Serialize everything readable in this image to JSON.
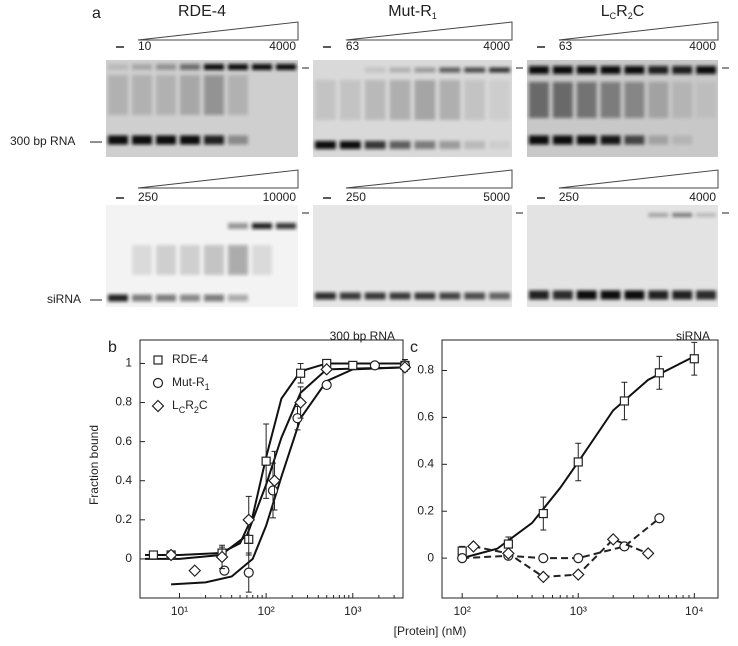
{
  "figure": {
    "panel_label": "a",
    "gels": [
      {
        "title": [
          {
            "text": "RDE-4"
          }
        ],
        "top": {
          "low": "10",
          "high": "4000"
        },
        "bottom": {
          "low": "250",
          "high": "10000"
        }
      },
      {
        "title": [
          {
            "text": "Mut-R"
          },
          {
            "sub": "1"
          }
        ],
        "top": {
          "low": "63",
          "high": "4000"
        },
        "bottom": {
          "low": "250",
          "high": "5000"
        }
      },
      {
        "title": [
          {
            "text": "L"
          },
          {
            "sub": "C"
          },
          {
            "text": "R"
          },
          {
            "sub": "2"
          },
          {
            "text": "C"
          }
        ],
        "top": {
          "low": "63",
          "high": "4000"
        },
        "bottom": {
          "low": "250",
          "high": "4000"
        }
      }
    ],
    "left_labels": [
      "300 bp RNA",
      "siRNA"
    ],
    "xlabel": "[Protein] (nM)",
    "ylabel": "Fraction bound"
  },
  "chart_data": [
    {
      "type": "scatter",
      "panel_label": "b",
      "title": "300 bp RNA",
      "xscale": "log",
      "legend": "upper left",
      "xlim": [
        3.5,
        3800
      ],
      "ylim": [
        -0.2,
        1.12
      ],
      "xticks": [
        {
          "value": 10,
          "label": "10¹"
        },
        {
          "value": 100,
          "label": "10²"
        },
        {
          "value": 1000,
          "label": "10³"
        }
      ],
      "yticks": [
        0,
        0.2,
        0.4,
        0.6,
        0.8,
        1
      ],
      "series": [
        {
          "name": [
            {
              "text": "RDE-4"
            }
          ],
          "marker": "square",
          "color": "#222",
          "x": [
            5,
            8,
            31,
            63,
            100,
            250,
            500,
            1000,
            4000
          ],
          "values": [
            0.02,
            0.02,
            0.03,
            0.1,
            0.5,
            0.95,
            1.0,
            0.99,
            0.99
          ],
          "errors": [
            null,
            null,
            0.03,
            0.08,
            0.19,
            0.05,
            null,
            null,
            0.03
          ]
        },
        {
          "name": [
            {
              "text": "Mut-R"
            },
            {
              "sub": "1"
            }
          ],
          "marker": "circle",
          "color": "#222",
          "x": [
            33,
            63,
            120,
            230,
            500,
            1800,
            4000
          ],
          "values": [
            -0.06,
            -0.07,
            0.35,
            0.72,
            0.89,
            0.99,
            0.99
          ],
          "errors": [
            null,
            0.1,
            0.14,
            0.06,
            null,
            null,
            null
          ]
        },
        {
          "name": [
            {
              "text": "L"
            },
            {
              "sub": "C"
            },
            {
              "text": "R"
            },
            {
              "sub": "2"
            },
            {
              "text": "C"
            }
          ],
          "marker": "diamond",
          "color": "#222",
          "x": [
            8,
            15,
            31,
            63,
            125,
            250,
            500,
            4000
          ],
          "values": [
            0.02,
            -0.06,
            0.01,
            0.2,
            0.4,
            0.8,
            0.97,
            0.98
          ],
          "errors": [
            null,
            null,
            0.06,
            0.12,
            0.15,
            0.08,
            null,
            null
          ]
        }
      ],
      "fits": [
        {
          "color": "#111",
          "x": [
            4,
            10,
            30,
            50,
            70,
            100,
            150,
            250,
            500,
            4000
          ],
          "values": [
            0.02,
            0.02,
            0.03,
            0.08,
            0.22,
            0.52,
            0.82,
            0.96,
            1.0,
            1.0
          ]
        },
        {
          "color": "#111",
          "x": [
            8,
            20,
            40,
            70,
            100,
            150,
            250,
            500,
            1000,
            4000
          ],
          "values": [
            -0.13,
            -0.12,
            -0.09,
            0.0,
            0.17,
            0.42,
            0.72,
            0.91,
            0.97,
            0.98
          ]
        },
        {
          "color": "#111",
          "x": [
            4,
            10,
            30,
            60,
            100,
            150,
            250,
            500,
            4000
          ],
          "values": [
            0.0,
            0.0,
            0.02,
            0.12,
            0.38,
            0.62,
            0.85,
            0.97,
            0.98
          ]
        }
      ]
    },
    {
      "type": "scatter",
      "panel_label": "c",
      "title": "siRNA",
      "xscale": "log",
      "xlim": [
        67,
        16000
      ],
      "ylim": [
        -0.17,
        0.93
      ],
      "xticks": [
        {
          "value": 100,
          "label": "10²"
        },
        {
          "value": 1000,
          "label": "10³"
        },
        {
          "value": 10000,
          "label": "10⁴"
        }
      ],
      "yticks": [
        0,
        0.2,
        0.4,
        0.6,
        0.8
      ],
      "series": [
        {
          "marker": "square",
          "color": "#222",
          "x": [
            100,
            250,
            500,
            1000,
            2500,
            5000,
            10000
          ],
          "values": [
            0.03,
            0.06,
            0.19,
            0.41,
            0.67,
            0.79,
            0.85
          ],
          "errors": [
            0.02,
            0.03,
            0.07,
            0.08,
            0.08,
            0.07,
            0.07
          ]
        },
        {
          "marker": "circle",
          "color": "#222",
          "line": "dashed",
          "x": [
            100,
            250,
            500,
            1000,
            2500,
            5000
          ],
          "values": [
            0.0,
            0.01,
            0.0,
            0.0,
            0.05,
            0.17
          ]
        },
        {
          "marker": "diamond",
          "color": "#222",
          "line": "dashed",
          "x": [
            125,
            250,
            500,
            1000,
            2000,
            4000
          ],
          "values": [
            0.05,
            0.02,
            -0.08,
            -0.07,
            0.08,
            0.02
          ]
        }
      ],
      "fits": [
        {
          "color": "#111",
          "x": [
            100,
            200,
            400,
            700,
            1000,
            2000,
            4000,
            10000
          ],
          "values": [
            0.0,
            0.04,
            0.15,
            0.3,
            0.41,
            0.63,
            0.76,
            0.86
          ]
        }
      ]
    }
  ]
}
